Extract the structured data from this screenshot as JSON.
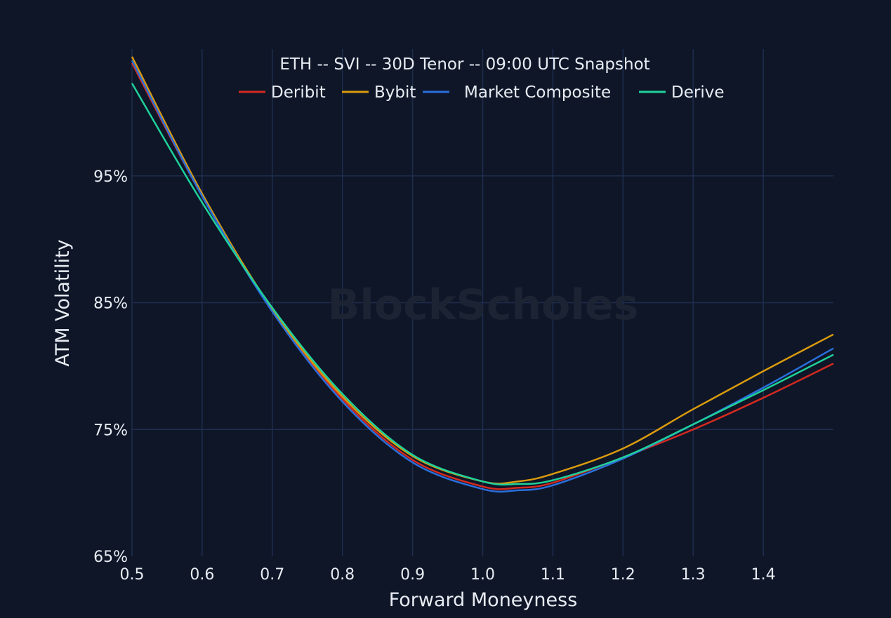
{
  "chart_data": {
    "type": "line",
    "title": "ETH -- SVI -- 30D Tenor -- 09:00 UTC Snapshot",
    "xlabel": "Forward Moneyness",
    "ylabel": "ATM Volatility",
    "watermark": "BlockScholes",
    "xlim": [
      0.5,
      1.5
    ],
    "ylim": [
      65,
      105
    ],
    "x_ticks": [
      "0.5",
      "0.6",
      "0.7",
      "0.8",
      "0.9",
      "1.0",
      "1.1",
      "1.2",
      "1.3",
      "1.4"
    ],
    "x_tick_values": [
      0.5,
      0.6,
      0.7,
      0.8,
      0.9,
      1.0,
      1.1,
      1.2,
      1.3,
      1.4
    ],
    "y_ticks": [
      "65%",
      "75%",
      "85%",
      "95%"
    ],
    "y_tick_values": [
      65,
      75,
      85,
      95
    ],
    "grid": true,
    "legend_placement": "top-center",
    "x": [
      0.5,
      0.6,
      0.7,
      0.8,
      0.9,
      1.0,
      1.05,
      1.1,
      1.2,
      1.3,
      1.4,
      1.5
    ],
    "series": [
      {
        "name": "Deribit",
        "color": "#d42a20",
        "values": [
          103.9,
          93.4,
          84.4,
          77.4,
          72.6,
          70.5,
          70.4,
          70.8,
          72.8,
          75.0,
          77.5,
          80.2
        ]
      },
      {
        "name": "Bybit",
        "color": "#d99a0e",
        "values": [
          104.4,
          93.6,
          84.5,
          77.6,
          72.9,
          70.9,
          70.9,
          71.5,
          73.5,
          76.6,
          79.6,
          82.5
        ]
      },
      {
        "name": "Market Composite",
        "color": "#2a6fdb",
        "values": [
          104.1,
          93.4,
          84.3,
          77.2,
          72.4,
          70.3,
          70.2,
          70.6,
          72.7,
          75.4,
          78.3,
          81.4
        ]
      },
      {
        "name": "Derive",
        "color": "#1fd19a",
        "values": [
          102.3,
          92.9,
          84.6,
          77.8,
          73.0,
          70.9,
          70.7,
          71.0,
          72.8,
          75.4,
          78.1,
          80.9
        ]
      }
    ]
  }
}
